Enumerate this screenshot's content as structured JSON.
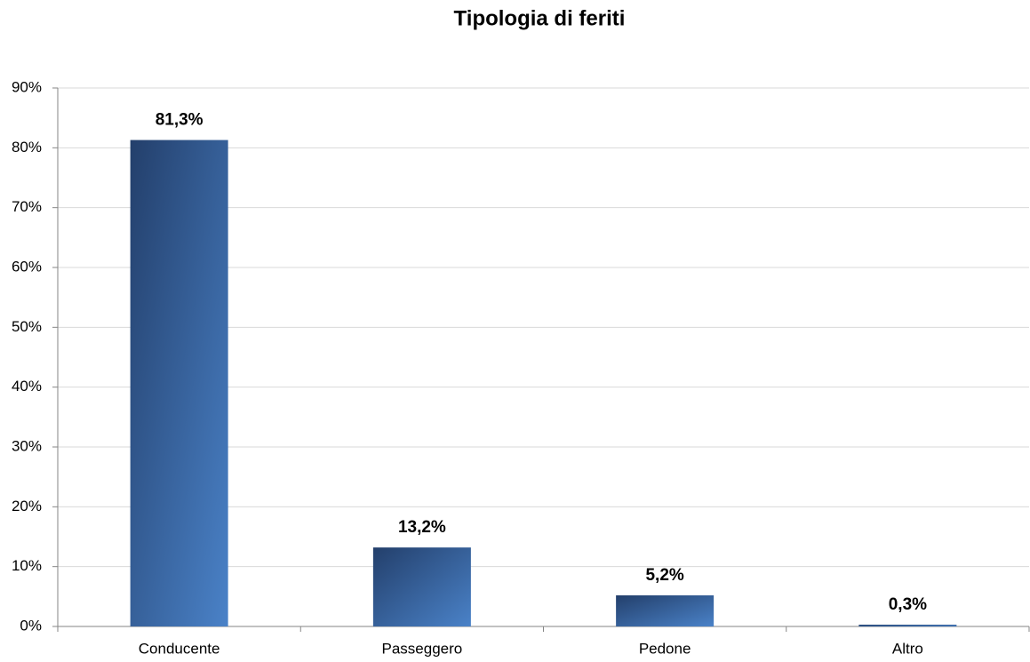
{
  "chart_data": {
    "type": "bar",
    "title": "Tipologia di feriti",
    "categories": [
      "Conducente",
      "Passeggero",
      "Pedone",
      "Altro"
    ],
    "values": [
      81.3,
      13.2,
      5.2,
      0.3
    ],
    "value_labels": [
      "81,3%",
      "13,2%",
      "5,2%",
      "0,3%"
    ],
    "gradient": [
      "#233f6b",
      "#4a82c8"
    ],
    "ylim": [
      0,
      90
    ],
    "yticks": [
      {
        "value": 0,
        "label": "0%"
      },
      {
        "value": 10,
        "label": "10%"
      },
      {
        "value": 20,
        "label": "20%"
      },
      {
        "value": 30,
        "label": "30%"
      },
      {
        "value": 40,
        "label": "40%"
      },
      {
        "value": 50,
        "label": "50%"
      },
      {
        "value": 60,
        "label": "60%"
      },
      {
        "value": 70,
        "label": "70%"
      },
      {
        "value": 80,
        "label": "80%"
      },
      {
        "value": 90,
        "label": "90%"
      }
    ],
    "grid": true
  }
}
